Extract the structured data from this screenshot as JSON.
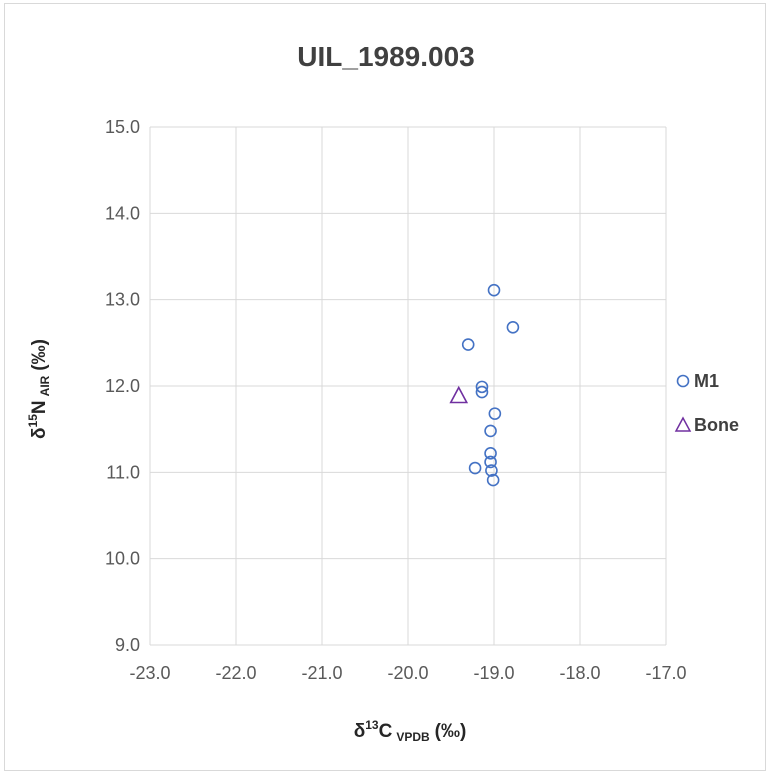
{
  "chart_data": {
    "type": "scatter",
    "title": "UIL_1989.003",
    "xlabel": {
      "main": "δ",
      "sup": "13",
      "element": "C",
      "sub": "VPDB",
      "unit": "(‰)"
    },
    "ylabel": {
      "main": "δ",
      "sup": "15",
      "element": "N",
      "sub": "AIR",
      "unit": "(‰)"
    },
    "xlim": [
      -23.0,
      -17.0
    ],
    "ylim": [
      9.0,
      15.0
    ],
    "x_ticks": [
      "-23.0",
      "-22.0",
      "-21.0",
      "-20.0",
      "-19.0",
      "-18.0",
      "-17.0"
    ],
    "y_ticks": [
      "9.0",
      "10.0",
      "11.0",
      "12.0",
      "13.0",
      "14.0",
      "15.0"
    ],
    "grid": true,
    "legend_position": "right",
    "series": [
      {
        "name": "M1",
        "marker": "circle",
        "color": "#4472c4",
        "points": [
          {
            "x": -19.0,
            "y": 13.11
          },
          {
            "x": -18.78,
            "y": 12.68
          },
          {
            "x": -19.3,
            "y": 12.48
          },
          {
            "x": -19.14,
            "y": 11.99
          },
          {
            "x": -19.14,
            "y": 11.93
          },
          {
            "x": -18.99,
            "y": 11.68
          },
          {
            "x": -19.04,
            "y": 11.48
          },
          {
            "x": -19.04,
            "y": 11.22
          },
          {
            "x": -19.04,
            "y": 11.12
          },
          {
            "x": -19.22,
            "y": 11.05
          },
          {
            "x": -19.03,
            "y": 11.02
          },
          {
            "x": -19.01,
            "y": 10.91
          }
        ]
      },
      {
        "name": "Bone",
        "marker": "triangle",
        "color": "#7030a0",
        "points": [
          {
            "x": -19.41,
            "y": 11.89
          }
        ]
      }
    ]
  }
}
